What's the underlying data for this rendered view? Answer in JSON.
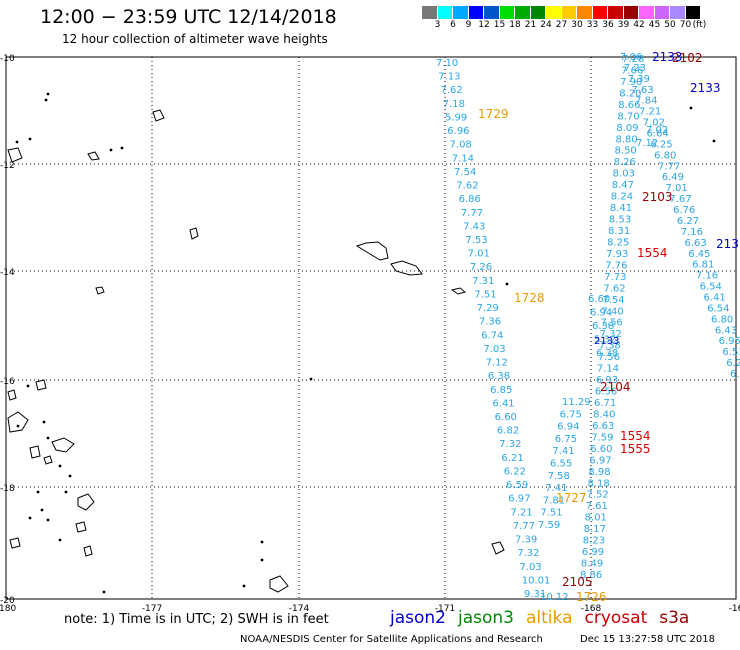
{
  "header": {
    "title": "12:00 − 23:59 UTC 12/14/2018",
    "subtitle": "12 hour collection of altimeter wave heights"
  },
  "legend": {
    "unit": "(ft)",
    "colors": [
      "#777777",
      "#00ffff",
      "#00aaff",
      "#0000ff",
      "#0055cc",
      "#00dd00",
      "#00aa00",
      "#008800",
      "#ffff00",
      "#ffcc00",
      "#ff8800",
      "#ff0000",
      "#cc0000",
      "#990000",
      "#ff66ff",
      "#cc66ff",
      "#aa88ff",
      "#000000"
    ],
    "labels": [
      "3",
      "6",
      "9",
      "12",
      "15",
      "18",
      "21",
      "24",
      "27",
      "30",
      "33",
      "36",
      "39",
      "42",
      "45",
      "50",
      "70"
    ]
  },
  "axes": {
    "lat_labels": [
      "-10",
      "-12",
      "-14",
      "-16",
      "-18",
      "-20"
    ],
    "lon_labels": [
      "-180",
      "-177",
      "-174",
      "-171",
      "-168",
      "-16"
    ]
  },
  "footer": {
    "notes": "note:  1) Time is in UTC;  2) SWH is in feet",
    "credit": "NOAA/NESDIS Center for Satellite Applications and Research",
    "timestamp": "Dec 15 13:27:58 UTC 2018"
  },
  "satellites": [
    {
      "name": "jason2",
      "color": "#0000cc"
    },
    {
      "name": "jason3",
      "color": "#008800"
    },
    {
      "name": "altika",
      "color": "#ee9900"
    },
    {
      "name": "cryosat",
      "color": "#cc0000"
    },
    {
      "name": "s3a",
      "color": "#990000"
    }
  ],
  "tracks": {
    "t1729": [
      "7.10",
      "7.13",
      "7.62",
      "7.18",
      "5.99",
      "6.96",
      "7.08",
      "7.14",
      "7.54",
      "7.62",
      "6.86",
      "7.77",
      "7.43",
      "7.53",
      "7.01",
      "7.26",
      "7.31",
      "7.51",
      "7.29",
      "7.36",
      "6.74",
      "7.03",
      "7.12",
      "6.38",
      "6.85",
      "6.41",
      "6.60",
      "6.82",
      "7.32",
      "6.21",
      "6.22",
      "6.59",
      "6.97",
      "7.21",
      "7.77",
      "7.39",
      "7.32",
      "7.03",
      "10.01",
      "9.31"
    ],
    "t2133": [
      "7.28",
      "7.66",
      "7.90",
      "8.20",
      "8.66",
      "8.70",
      "8.09",
      "8.80",
      "8.50",
      "8.26",
      "8.03",
      "8.47",
      "8.24",
      "8.41",
      "8.53",
      "8.31",
      "8.25",
      "7.93",
      "7.76",
      "7.73",
      "7.62",
      "7.54",
      "7.40",
      "7.56",
      "7.32",
      "7.38",
      "7.56",
      "7.14",
      "6.93",
      "6.56",
      "6.71",
      "8.40",
      "6.63",
      "7.59",
      "6.60",
      "6.97",
      "8.98",
      "8.18",
      "7.52",
      "7.61",
      "8.01",
      "8.17",
      "8.23",
      "6.99",
      "8.49",
      "8.86"
    ],
    "t2102": [
      "7.06",
      "7.23",
      "7.39",
      "7.63",
      "7.84",
      "7.21",
      "7.02",
      "6.64",
      "6.25",
      "6.80",
      "7.77",
      "6.49",
      "7.01",
      "7.67",
      "6.76",
      "6.27",
      "7.16",
      "6.63",
      "6.45",
      "6.81",
      "7.16",
      "6.54",
      "6.41",
      "6.54",
      "6.80",
      "6.43",
      "6.95",
      "6.51",
      "6.2",
      "6.8"
    ],
    "t2104": [
      "11.29",
      "6.75",
      "6.94",
      "6.75",
      "7.41",
      "6.55",
      "7.58",
      "7.41",
      "7.81",
      "7.51",
      "7.59"
    ],
    "t1728": [
      "6.60",
      "6.94",
      "6.38",
      "5.32",
      "6.38"
    ],
    "t1554": [
      "7.02",
      "7.12"
    ],
    "t2105": [
      "10.12"
    ],
    "track_ids": {
      "a1729": "1729",
      "a1728": "1728",
      "a1727": "1727",
      "a1726": "1726",
      "c1554": "1554",
      "c1554b": "1554",
      "c1555": "1555",
      "c2102": "2102",
      "c2103": "2103",
      "c2104": "2104",
      "c2105": "2105",
      "j2133": "2133",
      "j2133a": "2133",
      "j2133b": "213",
      "j2134": "2133"
    }
  }
}
